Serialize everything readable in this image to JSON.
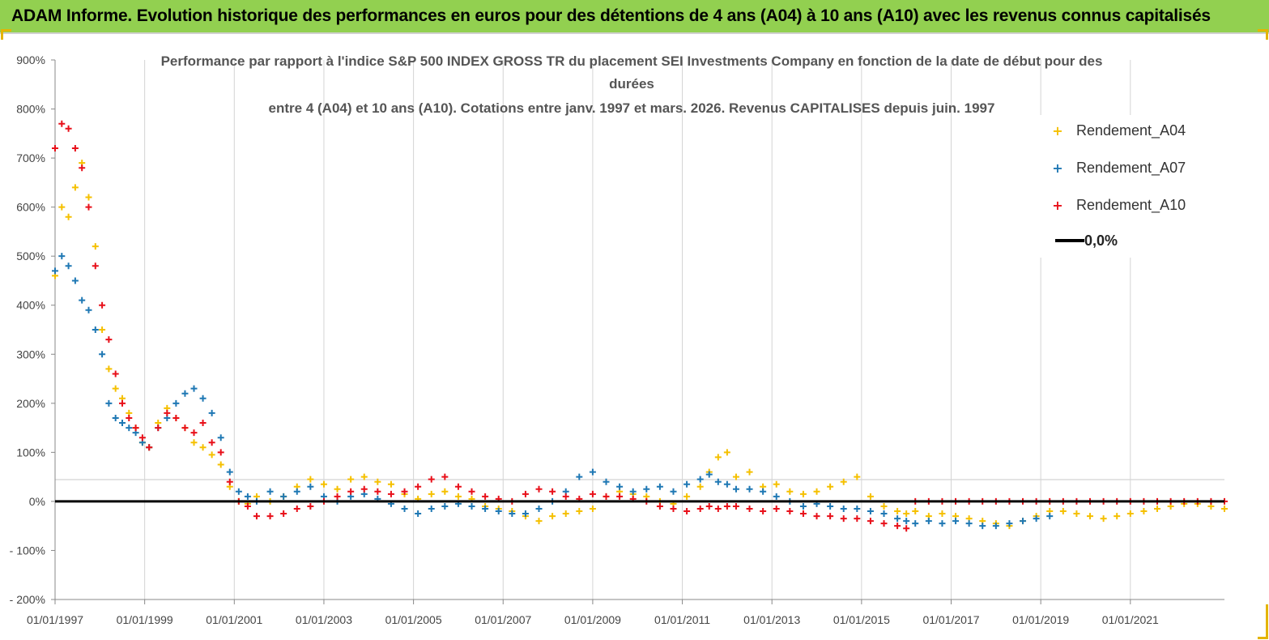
{
  "banner": {
    "title": "ADAM Informe. Evolution historique des performances en euros pour des détentions de 4 ans (A04) à 10 ans (A10) avec les revenus connus capitalisés"
  },
  "colors": {
    "banner_bg": "#92d050",
    "A04": "#f5c000",
    "A07": "#1f78b4",
    "A10": "#e8101a",
    "zero": "#000000"
  },
  "chart_data": {
    "type": "scatter",
    "title_lines": [
      "Performance par rapport à l'indice S&P 500 INDEX GROSS TR  du placement SEI Investments Company en fonction de la date de début pour des",
      "durées",
      "entre 4 (A04) et 10 ans (A10). Cotations entre janv. 1997 et mars. 2026. Revenus CAPITALISES depuis juin. 1997"
    ],
    "xlabel": "",
    "ylabel": "",
    "x_range": [
      1997.0,
      2023.1
    ],
    "y_range": [
      -200,
      900
    ],
    "y_ticks": [
      -200,
      -100,
      0,
      100,
      200,
      300,
      400,
      500,
      600,
      700,
      800,
      900
    ],
    "y_tick_labels": [
      "- 200%",
      "- 100%",
      "0%",
      "100%",
      "200%",
      "300%",
      "400%",
      "500%",
      "600%",
      "700%",
      "800%",
      "900%"
    ],
    "x_ticks": [
      1997,
      1999,
      2001,
      2003,
      2005,
      2007,
      2009,
      2011,
      2013,
      2015,
      2017,
      2019,
      2021
    ],
    "x_tick_labels": [
      "01/01/1997",
      "01/01/1999",
      "01/01/2001",
      "01/01/2003",
      "01/01/2005",
      "01/01/2007",
      "01/01/2009",
      "01/01/2011",
      "01/01/2013",
      "01/01/2015",
      "01/01/2017",
      "01/01/2019",
      "01/01/2021"
    ],
    "grid": "vertical",
    "legend_position": "top-right",
    "series": [
      {
        "name": "Rendement_A04",
        "marker": "+",
        "x": [
          1997.0,
          1997.15,
          1997.3,
          1997.45,
          1997.6,
          1997.75,
          1997.9,
          1998.05,
          1998.2,
          1998.35,
          1998.5,
          1998.65,
          1998.8,
          1998.95,
          1999.1,
          1999.3,
          1999.5,
          1999.7,
          1999.9,
          2000.1,
          2000.3,
          2000.5,
          2000.7,
          2000.9,
          2001.1,
          2001.3,
          2001.5,
          2001.8,
          2002.1,
          2002.4,
          2002.7,
          2003.0,
          2003.3,
          2003.6,
          2003.9,
          2004.2,
          2004.5,
          2004.8,
          2005.1,
          2005.4,
          2005.7,
          2006.0,
          2006.3,
          2006.6,
          2006.9,
          2007.2,
          2007.5,
          2007.8,
          2008.1,
          2008.4,
          2008.7,
          2009.0,
          2009.3,
          2009.6,
          2009.9,
          2010.2,
          2010.5,
          2010.8,
          2011.1,
          2011.4,
          2011.6,
          2011.8,
          2012.0,
          2012.2,
          2012.5,
          2012.8,
          2013.1,
          2013.4,
          2013.7,
          2014.0,
          2014.3,
          2014.6,
          2014.9,
          2015.2,
          2015.5,
          2015.8,
          2016.0,
          2016.2,
          2016.5,
          2016.8,
          2017.1,
          2017.4,
          2017.7,
          2018.0,
          2018.3,
          2018.6,
          2018.9,
          2019.2,
          2019.5,
          2019.8,
          2020.1,
          2020.4,
          2020.7,
          2021.0,
          2021.3,
          2021.6,
          2021.9,
          2022.2,
          2022.5,
          2022.8,
          2023.1
        ],
        "y": [
          460,
          600,
          580,
          640,
          690,
          620,
          520,
          350,
          270,
          230,
          210,
          180,
          150,
          120,
          110,
          160,
          190,
          170,
          150,
          120,
          110,
          95,
          75,
          30,
          0,
          -5,
          10,
          0,
          10,
          30,
          45,
          35,
          25,
          45,
          50,
          40,
          35,
          15,
          5,
          15,
          20,
          10,
          5,
          -10,
          -15,
          -20,
          -30,
          -40,
          -30,
          -25,
          -20,
          -15,
          10,
          20,
          15,
          10,
          0,
          -5,
          10,
          30,
          60,
          90,
          100,
          50,
          60,
          30,
          35,
          20,
          15,
          20,
          30,
          40,
          50,
          10,
          -10,
          -20,
          -25,
          -20,
          -30,
          -25,
          -30,
          -35,
          -40,
          -45,
          -50,
          -40,
          -30,
          -20,
          -20,
          -25,
          -30,
          -35,
          -30,
          -25,
          -20,
          -15,
          -10,
          -5,
          -5,
          -10,
          -15
        ]
      },
      {
        "name": "Rendement_A07",
        "marker": "+",
        "x": [
          1997.0,
          1997.15,
          1997.3,
          1997.45,
          1997.6,
          1997.75,
          1997.9,
          1998.05,
          1998.2,
          1998.35,
          1998.5,
          1998.65,
          1998.8,
          1998.95,
          1999.1,
          1999.3,
          1999.5,
          1999.7,
          1999.9,
          2000.1,
          2000.3,
          2000.5,
          2000.7,
          2000.9,
          2001.1,
          2001.3,
          2001.5,
          2001.8,
          2002.1,
          2002.4,
          2002.7,
          2003.0,
          2003.3,
          2003.6,
          2003.9,
          2004.2,
          2004.5,
          2004.8,
          2005.1,
          2005.4,
          2005.7,
          2006.0,
          2006.3,
          2006.6,
          2006.9,
          2007.2,
          2007.5,
          2007.8,
          2008.1,
          2008.4,
          2008.7,
          2009.0,
          2009.3,
          2009.6,
          2009.9,
          2010.2,
          2010.5,
          2010.8,
          2011.1,
          2011.4,
          2011.6,
          2011.8,
          2012.0,
          2012.2,
          2012.5,
          2012.8,
          2013.1,
          2013.4,
          2013.7,
          2014.0,
          2014.3,
          2014.6,
          2014.9,
          2015.2,
          2015.5,
          2015.8,
          2016.0,
          2016.2,
          2016.5,
          2016.8,
          2017.1,
          2017.4,
          2017.7,
          2018.0,
          2018.3,
          2018.6,
          2018.9,
          2019.2
        ],
        "y": [
          470,
          500,
          480,
          450,
          410,
          390,
          350,
          300,
          200,
          170,
          160,
          150,
          140,
          120,
          110,
          150,
          170,
          200,
          220,
          230,
          210,
          180,
          130,
          60,
          20,
          10,
          0,
          20,
          10,
          20,
          30,
          10,
          0,
          10,
          15,
          5,
          -5,
          -15,
          -25,
          -15,
          -10,
          -5,
          -10,
          -15,
          -20,
          -25,
          -25,
          -15,
          0,
          20,
          50,
          60,
          40,
          30,
          20,
          25,
          30,
          20,
          35,
          45,
          55,
          40,
          35,
          25,
          25,
          20,
          10,
          0,
          -10,
          -5,
          -10,
          -15,
          -15,
          -20,
          -25,
          -35,
          -40,
          -45,
          -40,
          -45,
          -40,
          -45,
          -50,
          -50,
          -45,
          -40,
          -35,
          -30
        ]
      },
      {
        "name": "Rendement_A10",
        "marker": "+",
        "x": [
          1997.0,
          1997.15,
          1997.3,
          1997.45,
          1997.6,
          1997.75,
          1997.9,
          1998.05,
          1998.2,
          1998.35,
          1998.5,
          1998.65,
          1998.8,
          1998.95,
          1999.1,
          1999.3,
          1999.5,
          1999.7,
          1999.9,
          2000.1,
          2000.3,
          2000.5,
          2000.7,
          2000.9,
          2001.1,
          2001.3,
          2001.5,
          2001.8,
          2002.1,
          2002.4,
          2002.7,
          2003.0,
          2003.3,
          2003.6,
          2003.9,
          2004.2,
          2004.5,
          2004.8,
          2005.1,
          2005.4,
          2005.7,
          2006.0,
          2006.3,
          2006.6,
          2006.9,
          2007.2,
          2007.5,
          2007.8,
          2008.1,
          2008.4,
          2008.7,
          2009.0,
          2009.3,
          2009.6,
          2009.9,
          2010.2,
          2010.5,
          2010.8,
          2011.1,
          2011.4,
          2011.6,
          2011.8,
          2012.0,
          2012.2,
          2012.5,
          2012.8,
          2013.1,
          2013.4,
          2013.7,
          2014.0,
          2014.3,
          2014.6,
          2014.9,
          2015.2,
          2015.5,
          2015.8,
          2016.0,
          2016.2,
          2016.5,
          2016.8,
          2017.1,
          2017.4,
          2017.7,
          2018.0,
          2018.3,
          2018.6,
          2018.9,
          2019.2,
          2019.5,
          2019.8,
          2020.1,
          2020.4,
          2020.7,
          2021.0,
          2021.3,
          2021.6,
          2021.9,
          2022.2,
          2022.5,
          2022.8,
          2023.1
        ],
        "y": [
          720,
          770,
          760,
          720,
          680,
          600,
          480,
          400,
          330,
          260,
          200,
          170,
          150,
          130,
          110,
          150,
          180,
          170,
          150,
          140,
          160,
          120,
          100,
          40,
          0,
          -10,
          -30,
          -30,
          -25,
          -15,
          -10,
          0,
          10,
          20,
          25,
          20,
          15,
          20,
          30,
          45,
          50,
          30,
          20,
          10,
          5,
          0,
          15,
          25,
          20,
          10,
          5,
          15,
          10,
          10,
          5,
          0,
          -10,
          -15,
          -20,
          -15,
          -10,
          -15,
          -10,
          -10,
          -15,
          -20,
          -15,
          -20,
          -25,
          -30,
          -30,
          -35,
          -35,
          -40,
          -45,
          -50,
          -55,
          0,
          0,
          0,
          0,
          0,
          0,
          0,
          0,
          0,
          0,
          0,
          0,
          0,
          0,
          0,
          0,
          0,
          0,
          0,
          0,
          0,
          0,
          0,
          0
        ]
      },
      {
        "name": "0,0%",
        "type": "line",
        "x": [
          1997.0,
          2023.1
        ],
        "y": [
          0,
          0
        ]
      }
    ]
  },
  "legend": {
    "items": [
      {
        "label": "Rendement_A04",
        "marker": "+"
      },
      {
        "label": "Rendement_A07",
        "marker": "+"
      },
      {
        "label": "Rendement_A10",
        "marker": "+"
      },
      {
        "label": "0,0%",
        "marker": "line"
      }
    ]
  }
}
